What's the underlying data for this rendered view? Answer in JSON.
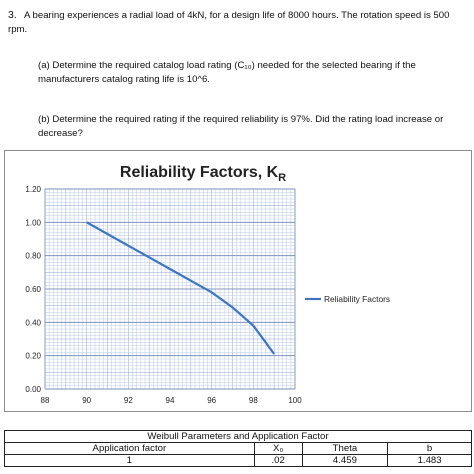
{
  "problem": {
    "number": "3.",
    "statement": "A bearing experiences a radial load of 4kN, for a design life of 8000 hours.  The rotation speed is 500 rpm.",
    "part_a": "(a) Determine the required catalog load rating (C₁₀) needed for the selected bearing if the manufacturers catalog rating life is 10^6.",
    "part_b": "(b) Determine the required rating if the required reliability is 97%.  Did the rating load increase or decrease?"
  },
  "chart_data": {
    "type": "line",
    "title": "Reliability Factors, K",
    "title_subscript": "R",
    "x_ticks": [
      "88",
      "90",
      "92",
      "94",
      "96",
      "98",
      "100"
    ],
    "y_ticks": [
      "0.00",
      "0.20",
      "0.40",
      "0.60",
      "0.80",
      "1.00",
      "1.20"
    ],
    "xlim": [
      88,
      100
    ],
    "ylim": [
      0,
      1.2
    ],
    "grid": true,
    "legend_position": "right",
    "series": [
      {
        "name": "Reliability Factors",
        "color": "#3d76c0",
        "x": [
          90,
          91,
          92,
          93,
          94,
          95,
          96,
          97,
          98,
          99
        ],
        "y": [
          1.0,
          0.93,
          0.86,
          0.79,
          0.72,
          0.65,
          0.58,
          0.49,
          0.38,
          0.21
        ]
      }
    ]
  },
  "table": {
    "caption": "Weibull Parameters and Application Factor",
    "headers": [
      "Application factor",
      "X₀",
      "Theta",
      "b"
    ],
    "values": [
      "1",
      ".02",
      "4.459",
      "1.483"
    ]
  }
}
